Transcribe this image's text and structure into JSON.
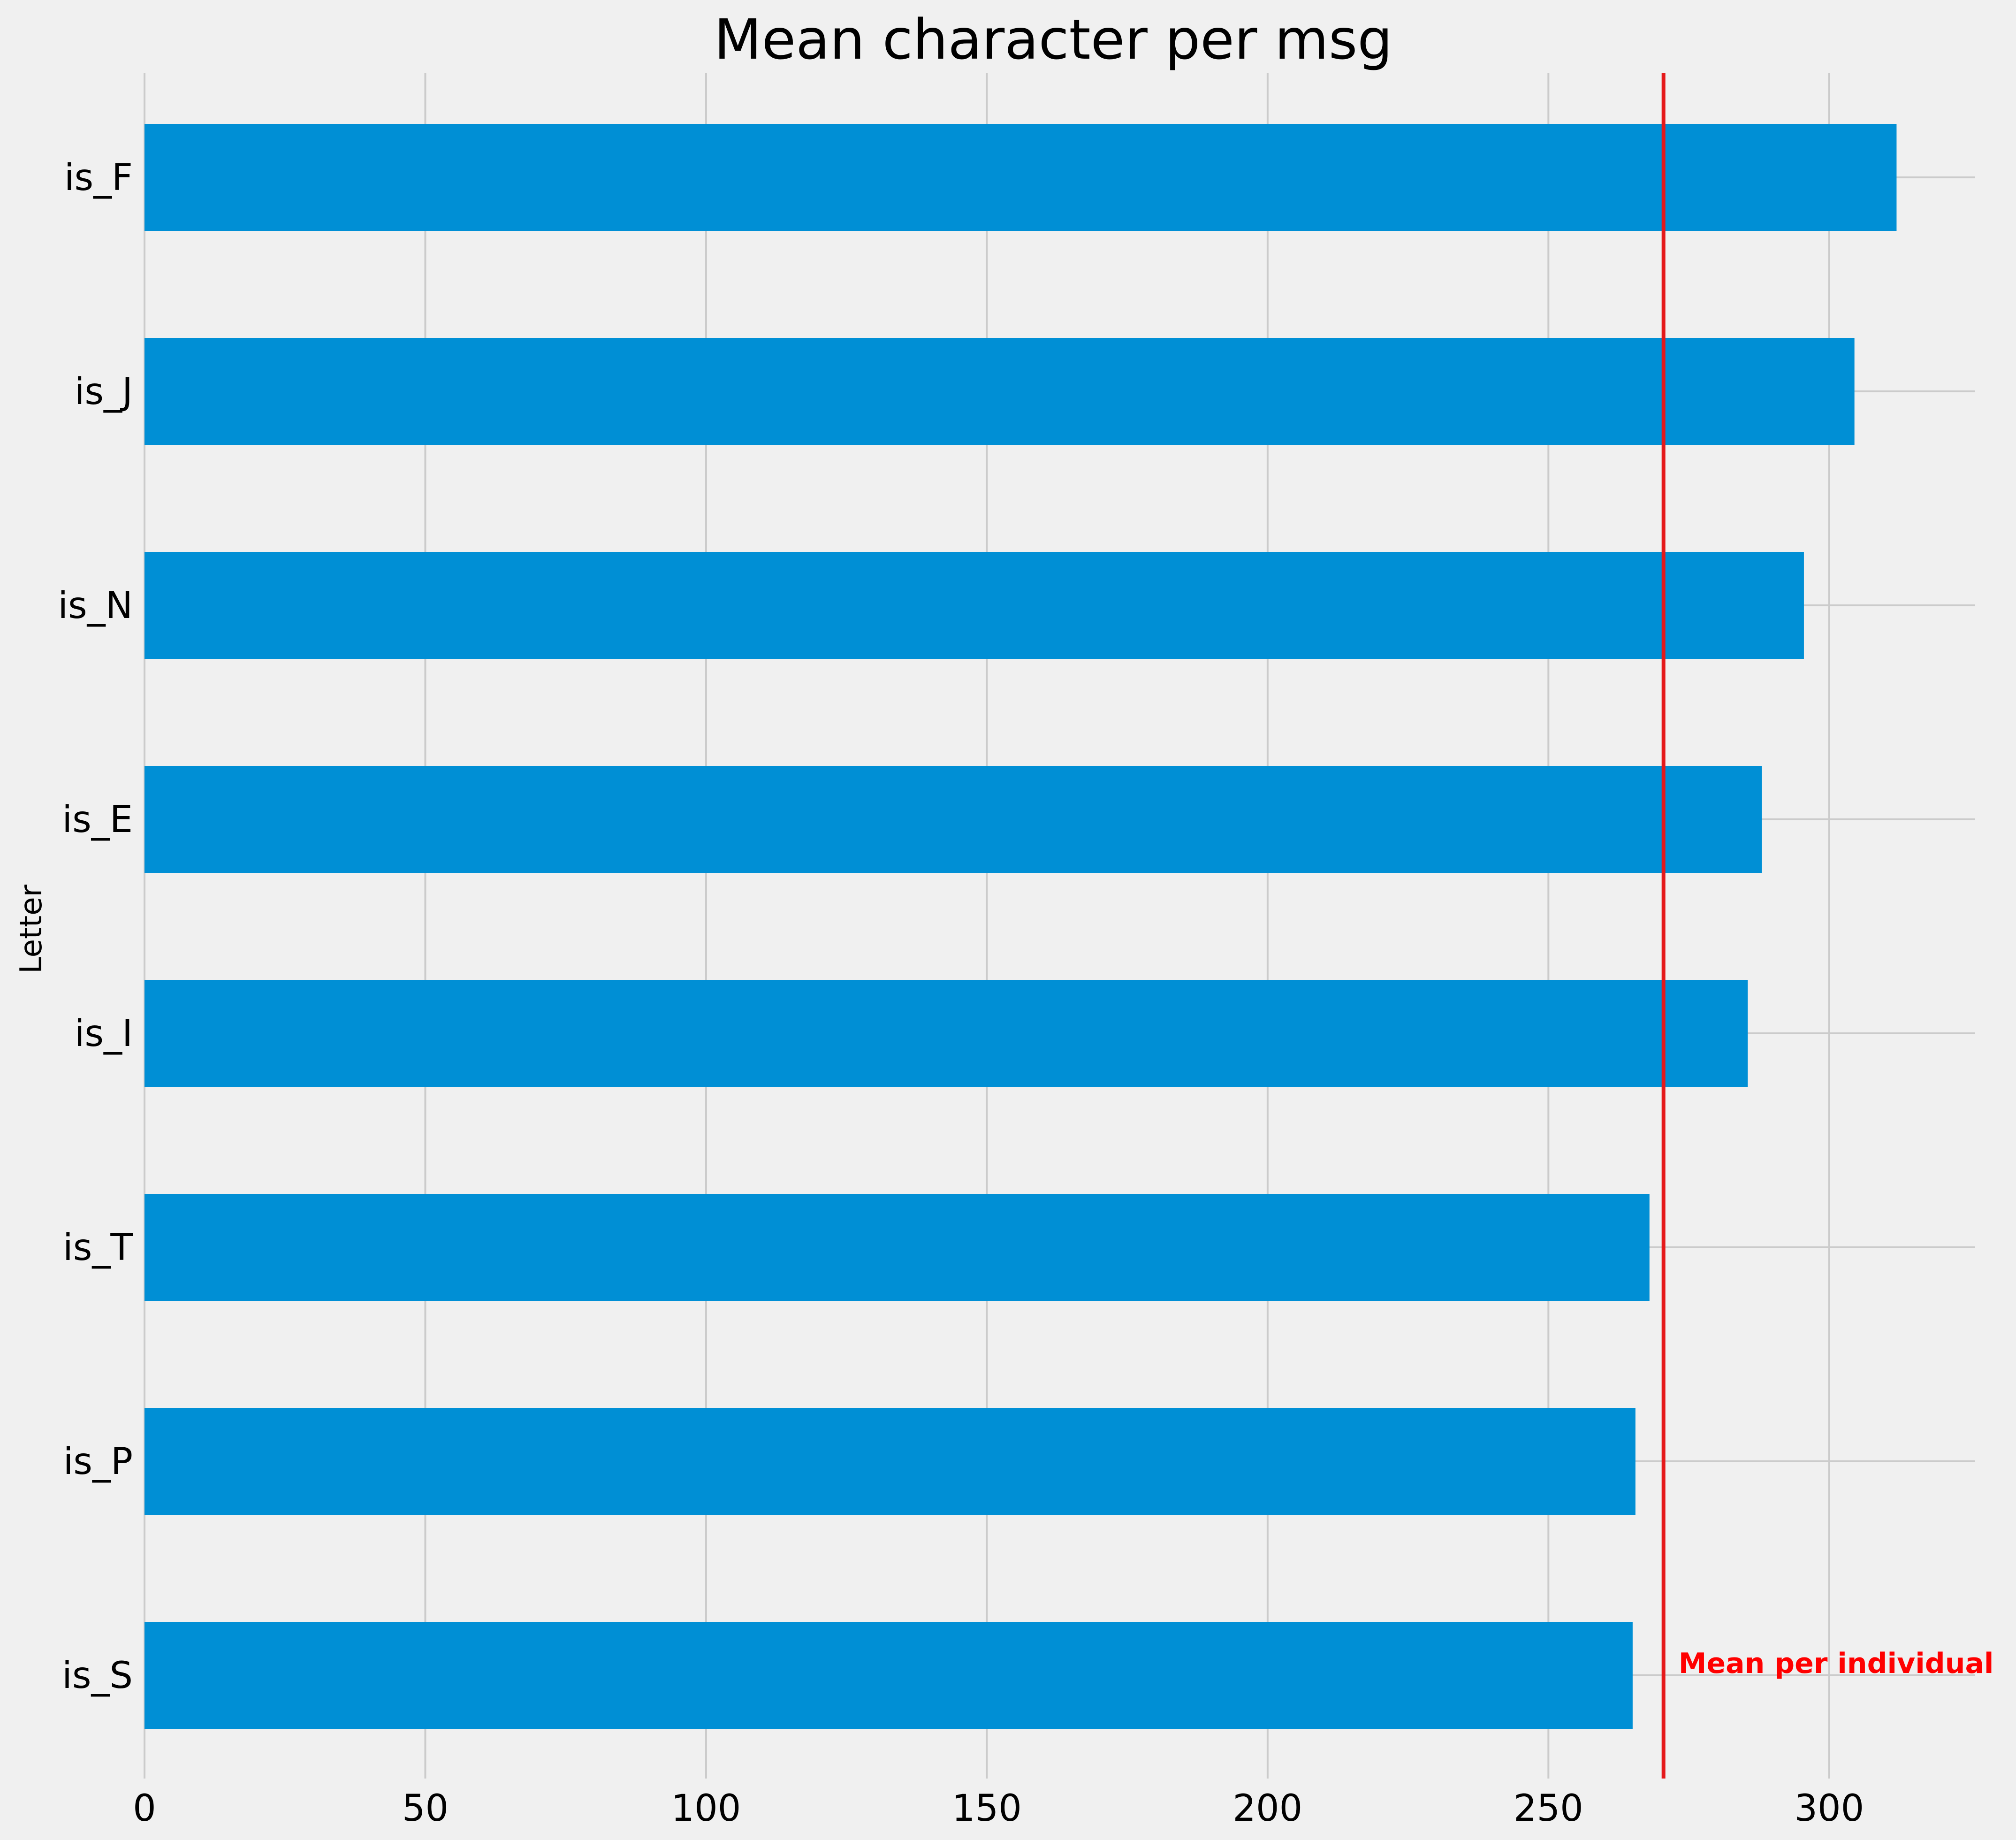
{
  "chart_data": {
    "type": "bar",
    "orientation": "horizontal",
    "title": "Mean character per msg",
    "ylabel": "Letter",
    "xlabel": "",
    "categories": [
      "is_F",
      "is_J",
      "is_N",
      "is_E",
      "is_I",
      "is_T",
      "is_P",
      "is_S"
    ],
    "values": [
      312,
      304.5,
      295.5,
      288,
      285.5,
      268,
      265.5,
      265
    ],
    "xlim": [
      0,
      326
    ],
    "xticks": [
      0,
      50,
      100,
      150,
      200,
      250,
      300
    ],
    "grid": true,
    "bar_color": "#008fd5",
    "reference_line": {
      "value": 270.5,
      "color": "#e5191b",
      "label": "Mean per individual",
      "label_color": "#ff0000"
    }
  }
}
